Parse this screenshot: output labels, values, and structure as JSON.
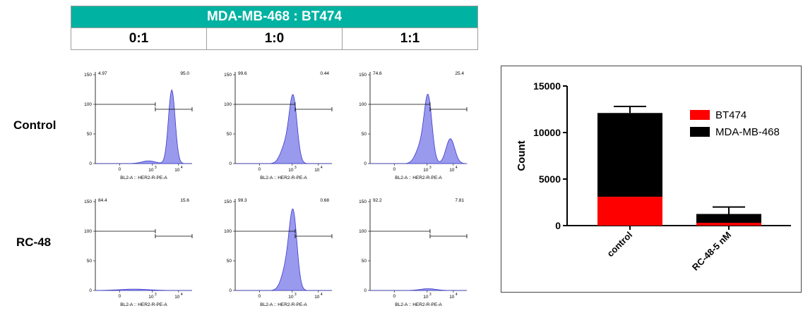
{
  "header": {
    "title": "MDA-MB-468 : BT474",
    "columns": [
      "0:1",
      "1:0",
      "1:1"
    ]
  },
  "rows": [
    "Control",
    "RC-48"
  ],
  "flow": {
    "xlabel": "BL2-A :: HER2-R-PE-A",
    "y_ticks": [
      "150",
      "100",
      "50",
      "0"
    ],
    "x_ticks": [
      "0",
      "10",
      "3",
      "10",
      "4"
    ],
    "fill_color": "#9999ee",
    "stroke_color": "#3b3bcc",
    "panels": [
      {
        "row": 0,
        "col": 0,
        "left_pct": "4.97",
        "right_pct": "95.0",
        "peaks": [
          {
            "center": 0.79,
            "height": 0.83,
            "width": 0.035
          },
          {
            "center": 0.55,
            "height": 0.03,
            "width": 0.07
          }
        ]
      },
      {
        "row": 0,
        "col": 1,
        "left_pct": "99.6",
        "right_pct": "0.44",
        "peaks": [
          {
            "center": 0.6,
            "height": 0.72,
            "width": 0.04
          },
          {
            "center": 0.52,
            "height": 0.2,
            "width": 0.05
          }
        ]
      },
      {
        "row": 0,
        "col": 2,
        "left_pct": "74.6",
        "right_pct": "25.4",
        "peaks": [
          {
            "center": 0.6,
            "height": 0.73,
            "width": 0.04
          },
          {
            "center": 0.52,
            "height": 0.18,
            "width": 0.05
          },
          {
            "center": 0.83,
            "height": 0.28,
            "width": 0.045
          }
        ]
      },
      {
        "row": 1,
        "col": 0,
        "left_pct": "84.4",
        "right_pct": "15.6",
        "peaks": [
          {
            "center": 0.4,
            "height": 0.015,
            "width": 0.15
          }
        ]
      },
      {
        "row": 1,
        "col": 1,
        "left_pct": "99.3",
        "right_pct": "0.68",
        "peaks": [
          {
            "center": 0.6,
            "height": 0.82,
            "width": 0.04
          },
          {
            "center": 0.53,
            "height": 0.25,
            "width": 0.05
          }
        ]
      },
      {
        "row": 1,
        "col": 2,
        "left_pct": "92.2",
        "right_pct": "7.81",
        "peaks": [
          {
            "center": 0.6,
            "height": 0.02,
            "width": 0.08
          }
        ]
      }
    ]
  },
  "chart_data": {
    "type": "bar",
    "stacked": true,
    "categories": [
      "control",
      "RC-48-5 nM"
    ],
    "series": [
      {
        "name": "BT474",
        "color": "#ff0000",
        "values": [
          3100,
          300
        ]
      },
      {
        "name": "MDA-MB-468",
        "color": "#000000",
        "values": [
          9000,
          950
        ]
      }
    ],
    "error_top": [
      12800,
      2000
    ],
    "ylabel": "Count",
    "ylim": [
      0,
      15000
    ],
    "y_ticks": [
      "0",
      "5000",
      "10000",
      "15000"
    ],
    "legend_position": "top-right"
  }
}
